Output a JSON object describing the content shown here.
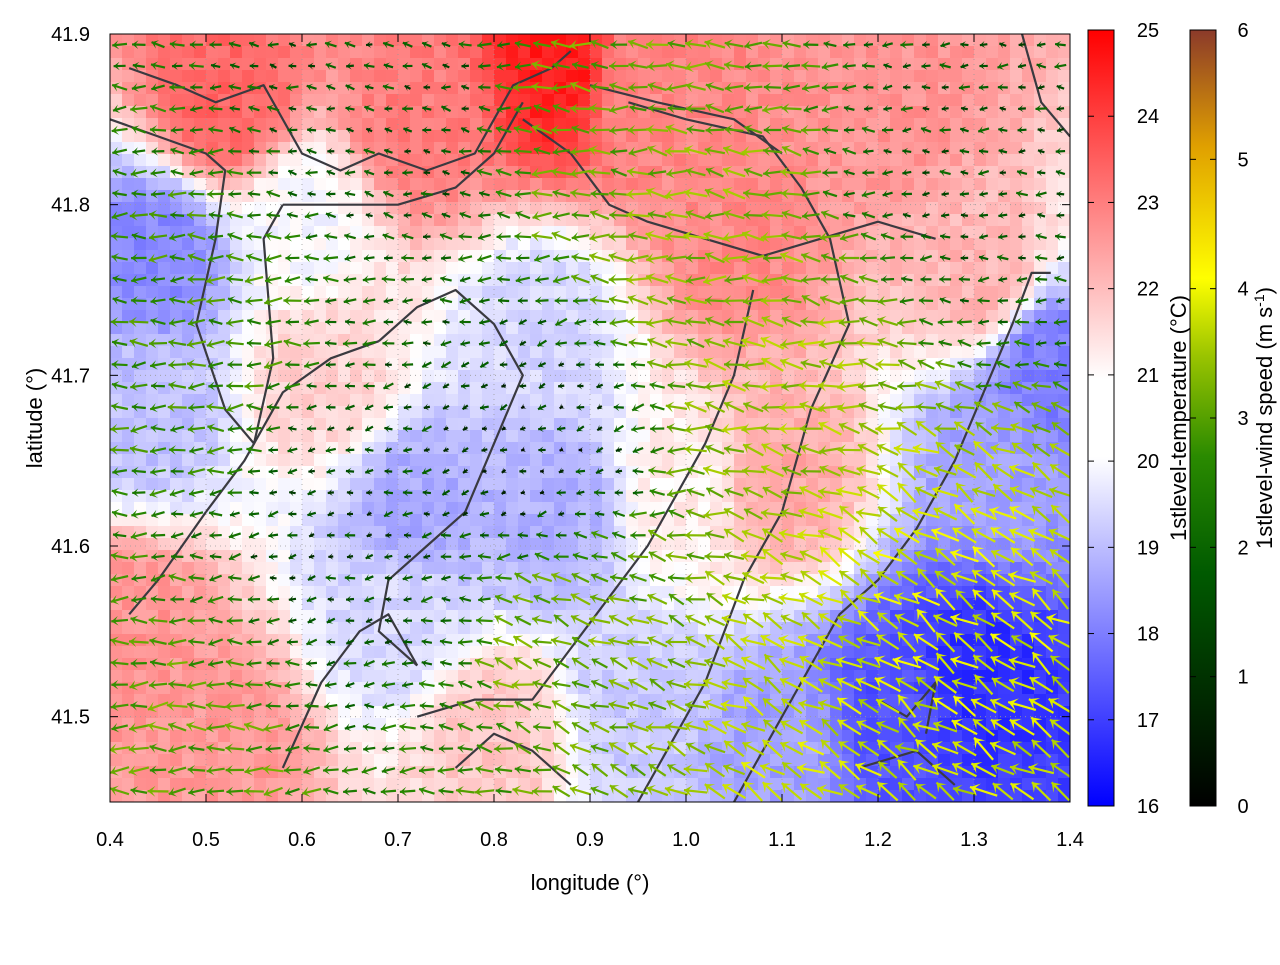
{
  "chart_data": {
    "type": "heatmap",
    "title": "",
    "xlabel": "longitude (°)",
    "ylabel": "latitude (°)",
    "xlim": [
      0.4,
      1.4
    ],
    "ylim": [
      41.45,
      41.9
    ],
    "x_ticks": [
      "0.4",
      "0.5",
      "0.6",
      "0.7",
      "0.8",
      "0.9",
      "1.0",
      "1.1",
      "1.2",
      "1.3",
      "1.4"
    ],
    "y_ticks": [
      "41.5",
      "41.6",
      "41.7",
      "41.8",
      "41.9"
    ],
    "y_tick_values": [
      41.5,
      41.6,
      41.7,
      41.8,
      41.9
    ],
    "grid": true,
    "temperature_colorbar": {
      "label": "1stlevel-temperature (°C)",
      "range": [
        16,
        25
      ],
      "ticks": [
        "16",
        "17",
        "18",
        "19",
        "20",
        "21",
        "22",
        "23",
        "24",
        "25"
      ],
      "colors": [
        "#0000ff",
        "#ffffff",
        "#ff0000"
      ]
    },
    "wind_colorbar": {
      "label_main": "1stlevel-wind speed (m s",
      "label_sup": "-1",
      "label_end": ")",
      "range": [
        0,
        6
      ],
      "ticks": [
        "0",
        "1",
        "2",
        "3",
        "4",
        "5",
        "6"
      ],
      "colors": [
        "#000000",
        "#005a00",
        "#2a8a00",
        "#9ac400",
        "#ffff00",
        "#e0a000",
        "#8b3a2a"
      ]
    },
    "temperature_regions": [
      {
        "lon": 0.52,
        "lat": 41.86,
        "t": 23.2
      },
      {
        "lon": 0.72,
        "lat": 41.85,
        "t": 22.8
      },
      {
        "lon": 0.87,
        "lat": 41.88,
        "t": 24.5
      },
      {
        "lon": 0.95,
        "lat": 41.87,
        "t": 22.6
      },
      {
        "lon": 1.22,
        "lat": 41.86,
        "t": 22.4
      },
      {
        "lon": 1.05,
        "lat": 41.78,
        "t": 22.6
      },
      {
        "lon": 0.45,
        "lat": 41.77,
        "t": 18.4
      },
      {
        "lon": 0.44,
        "lat": 41.68,
        "t": 19.4
      },
      {
        "lon": 0.62,
        "lat": 41.7,
        "t": 21.3
      },
      {
        "lon": 0.85,
        "lat": 41.73,
        "t": 19.8
      },
      {
        "lon": 0.72,
        "lat": 41.62,
        "t": 19.0
      },
      {
        "lon": 0.86,
        "lat": 41.62,
        "t": 19.1
      },
      {
        "lon": 1.1,
        "lat": 41.64,
        "t": 22.0
      },
      {
        "lon": 1.0,
        "lat": 41.63,
        "t": 20.8
      },
      {
        "lon": 0.42,
        "lat": 41.55,
        "t": 22.4
      },
      {
        "lon": 0.52,
        "lat": 41.48,
        "t": 22.3
      },
      {
        "lon": 0.7,
        "lat": 41.56,
        "t": 19.8
      },
      {
        "lon": 0.8,
        "lat": 41.49,
        "t": 21.5
      },
      {
        "lon": 0.95,
        "lat": 41.5,
        "t": 19.6
      },
      {
        "lon": 1.1,
        "lat": 41.48,
        "t": 18.8
      },
      {
        "lon": 1.22,
        "lat": 41.5,
        "t": 17.4
      },
      {
        "lon": 1.3,
        "lat": 41.52,
        "t": 16.8
      },
      {
        "lon": 1.33,
        "lat": 41.65,
        "t": 18.8
      },
      {
        "lon": 1.3,
        "lat": 41.76,
        "t": 21.8
      },
      {
        "lon": 1.38,
        "lat": 41.7,
        "t": 18.2
      },
      {
        "lon": 0.6,
        "lat": 41.79,
        "t": 20.4
      }
    ],
    "wind_field": {
      "grid_step_lon": 0.02,
      "grid_step_lat": 0.0125,
      "regions": [
        {
          "lon": 0.5,
          "lat": 41.72,
          "speed": 2.1,
          "dir_deg": 180
        },
        {
          "lon": 0.45,
          "lat": 41.47,
          "speed": 2.4,
          "dir_deg": 180
        },
        {
          "lon": 0.9,
          "lat": 41.84,
          "speed": 2.5,
          "dir_deg": 175
        },
        {
          "lon": 1.0,
          "lat": 41.78,
          "speed": 2.8,
          "dir_deg": 175
        },
        {
          "lon": 1.1,
          "lat": 41.68,
          "speed": 3.0,
          "dir_deg": 170
        },
        {
          "lon": 1.25,
          "lat": 41.56,
          "speed": 3.6,
          "dir_deg": 145
        },
        {
          "lon": 1.15,
          "lat": 41.5,
          "speed": 3.4,
          "dir_deg": 150
        },
        {
          "lon": 0.9,
          "lat": 41.55,
          "speed": 2.6,
          "dir_deg": 160
        },
        {
          "lon": 0.65,
          "lat": 41.62,
          "speed": 0.8,
          "dir_deg": 190
        },
        {
          "lon": 0.85,
          "lat": 41.66,
          "speed": 0.6,
          "dir_deg": 200
        },
        {
          "lon": 1.3,
          "lat": 41.82,
          "speed": 1.0,
          "dir_deg": 180
        },
        {
          "lon": 0.7,
          "lat": 41.85,
          "speed": 1.0,
          "dir_deg": 170
        }
      ]
    },
    "contour_lines": [
      [
        [
          0.42,
          41.88
        ],
        [
          0.47,
          41.87
        ],
        [
          0.51,
          41.86
        ],
        [
          0.56,
          41.87
        ],
        [
          0.6,
          41.83
        ],
        [
          0.64,
          41.82
        ],
        [
          0.68,
          41.83
        ],
        [
          0.73,
          41.82
        ],
        [
          0.78,
          41.83
        ],
        [
          0.82,
          41.87
        ],
        [
          0.86,
          41.88
        ],
        [
          0.88,
          41.89
        ]
      ],
      [
        [
          0.4,
          41.85
        ],
        [
          0.45,
          41.84
        ],
        [
          0.5,
          41.83
        ],
        [
          0.52,
          41.82
        ],
        [
          0.51,
          41.78
        ],
        [
          0.49,
          41.73
        ],
        [
          0.52,
          41.68
        ],
        [
          0.55,
          41.66
        ],
        [
          0.57,
          41.71
        ],
        [
          0.56,
          41.78
        ],
        [
          0.58,
          41.8
        ]
      ],
      [
        [
          0.58,
          41.8
        ],
        [
          0.64,
          41.8
        ],
        [
          0.7,
          41.8
        ],
        [
          0.76,
          41.81
        ],
        [
          0.8,
          41.83
        ],
        [
          0.83,
          41.86
        ]
      ],
      [
        [
          0.83,
          41.85
        ],
        [
          0.88,
          41.83
        ],
        [
          0.92,
          41.8
        ],
        [
          0.96,
          41.79
        ],
        [
          1.02,
          41.78
        ],
        [
          1.08,
          41.77
        ],
        [
          1.14,
          41.78
        ],
        [
          1.2,
          41.79
        ],
        [
          1.26,
          41.78
        ]
      ],
      [
        [
          0.94,
          41.86
        ],
        [
          1.0,
          41.85
        ],
        [
          1.08,
          41.84
        ],
        [
          1.12,
          41.81
        ],
        [
          1.15,
          41.78
        ],
        [
          1.17,
          41.73
        ],
        [
          1.13,
          41.68
        ],
        [
          1.1,
          41.62
        ],
        [
          1.06,
          41.58
        ],
        [
          1.02,
          41.52
        ],
        [
          0.98,
          41.48
        ],
        [
          0.95,
          41.45
        ]
      ],
      [
        [
          0.9,
          41.87
        ],
        [
          0.97,
          41.86
        ],
        [
          1.05,
          41.85
        ],
        [
          1.1,
          41.83
        ]
      ],
      [
        [
          0.68,
          41.72
        ],
        [
          0.72,
          41.74
        ],
        [
          0.76,
          41.75
        ],
        [
          0.8,
          41.73
        ],
        [
          0.83,
          41.7
        ],
        [
          0.8,
          41.66
        ],
        [
          0.77,
          41.62
        ],
        [
          0.73,
          41.6
        ],
        [
          0.69,
          41.58
        ],
        [
          0.68,
          41.55
        ],
        [
          0.72,
          41.53
        ]
      ],
      [
        [
          0.5,
          41.62
        ],
        [
          0.54,
          41.65
        ],
        [
          0.58,
          41.69
        ],
        [
          0.63,
          41.71
        ],
        [
          0.68,
          41.72
        ]
      ],
      [
        [
          0.42,
          41.56
        ],
        [
          0.45,
          41.58
        ],
        [
          0.5,
          41.62
        ]
      ],
      [
        [
          0.58,
          41.47
        ],
        [
          0.62,
          41.52
        ],
        [
          0.66,
          41.55
        ],
        [
          0.69,
          41.56
        ],
        [
          0.72,
          41.53
        ]
      ],
      [
        [
          0.72,
          41.5
        ],
        [
          0.78,
          41.51
        ],
        [
          0.84,
          41.51
        ],
        [
          0.88,
          41.54
        ],
        [
          0.92,
          41.57
        ],
        [
          0.96,
          41.6
        ],
        [
          0.99,
          41.63
        ],
        [
          1.02,
          41.66
        ],
        [
          1.05,
          41.7
        ],
        [
          1.07,
          41.75
        ]
      ],
      [
        [
          0.76,
          41.47
        ],
        [
          0.8,
          41.49
        ],
        [
          0.84,
          41.48
        ],
        [
          0.88,
          41.46
        ]
      ],
      [
        [
          1.05,
          41.45
        ],
        [
          1.08,
          41.48
        ],
        [
          1.12,
          41.52
        ],
        [
          1.16,
          41.56
        ],
        [
          1.2,
          41.58
        ],
        [
          1.24,
          41.61
        ],
        [
          1.28,
          41.65
        ],
        [
          1.31,
          41.69
        ],
        [
          1.34,
          41.73
        ],
        [
          1.36,
          41.76
        ],
        [
          1.38,
          41.76
        ]
      ],
      [
        [
          1.18,
          41.47
        ],
        [
          1.24,
          41.48
        ],
        [
          1.28,
          41.46
        ]
      ],
      [
        [
          1.2,
          41.51
        ],
        [
          1.23,
          41.5
        ],
        [
          1.26,
          41.52
        ],
        [
          1.25,
          41.49
        ]
      ],
      [
        [
          1.35,
          41.9
        ],
        [
          1.37,
          41.86
        ],
        [
          1.4,
          41.84
        ]
      ]
    ]
  }
}
